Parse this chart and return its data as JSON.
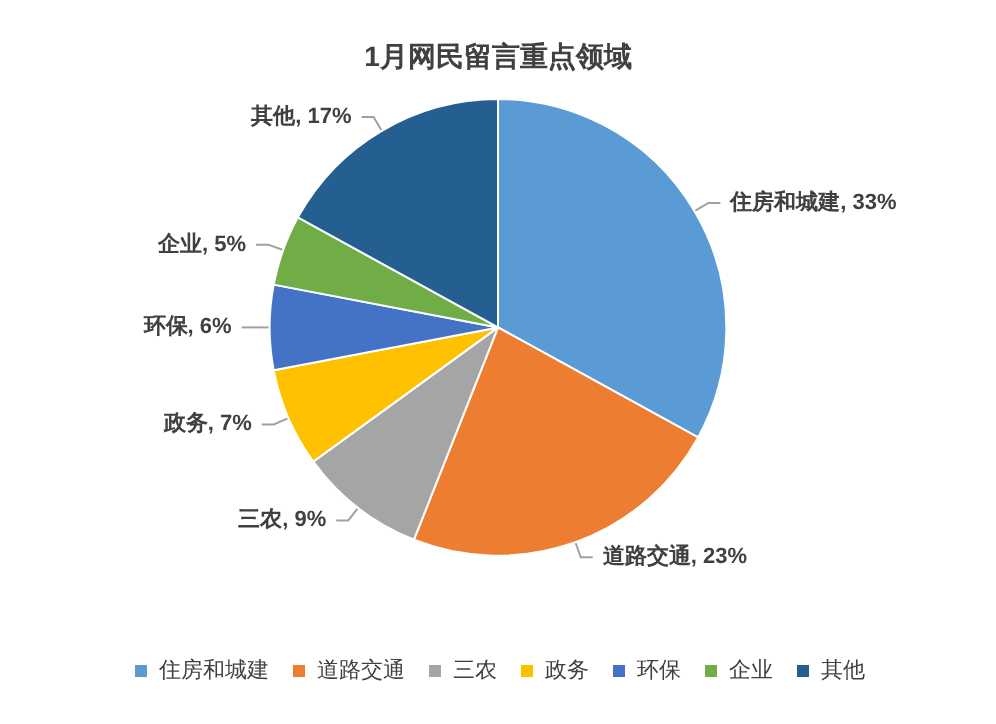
{
  "chart_data": {
    "type": "pie",
    "title": "1月网民留言重点领域",
    "categories": [
      "住房和城建",
      "道路交通",
      "三农",
      "政务",
      "环保",
      "企业",
      "其他"
    ],
    "values": [
      33,
      23,
      9,
      7,
      6,
      5,
      17
    ],
    "colors": [
      "#5b9bd5",
      "#ed7d31",
      "#a5a5a5",
      "#ffc000",
      "#4472c4",
      "#70ad47",
      "#255e91"
    ],
    "value_labels": [
      "住房和城建, 33%",
      "道路交通, 23%",
      "三农, 9%",
      "政务, 7%",
      "环保, 6%",
      "企业, 5%",
      "其他, 17%"
    ],
    "legend": "bottom"
  }
}
